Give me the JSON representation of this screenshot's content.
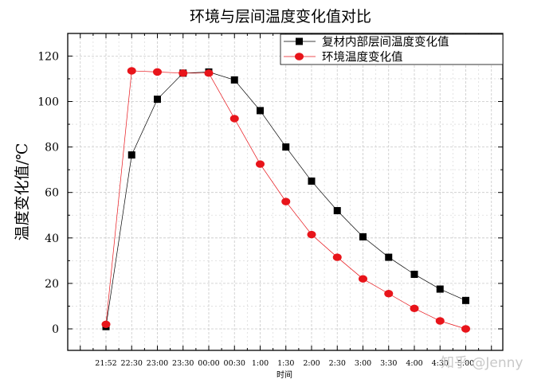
{
  "watermark": "知乎 @Jenny",
  "chart_data": {
    "type": "line",
    "title": "环境与层间温度变化值对比",
    "xlabel": "时间",
    "ylabel": "温度变化值/℃",
    "categories": [
      "21:52",
      "22:30",
      "23:00",
      "23:30",
      "00:00",
      "00:30",
      "1:00",
      "1:30",
      "2:00",
      "2:30",
      "3:00",
      "3:30",
      "4:00",
      "4:30",
      "5:00"
    ],
    "x_tick_labels": [
      "21:52",
      "22:30",
      "23:00",
      "23:30",
      "00:00",
      "00:30",
      "1:00",
      "1:30",
      "2:00",
      "2:30",
      "3:00",
      "3:30",
      "4:00",
      "4:30",
      "5:00"
    ],
    "ylim": [
      -10,
      130
    ],
    "yticks": [
      0,
      20,
      40,
      60,
      80,
      100,
      120
    ],
    "grid": true,
    "legend_position": "top-right",
    "series": [
      {
        "name": "复材内部层间温度变化值",
        "color": "#000000",
        "marker": "square",
        "values": [
          1,
          76.5,
          101,
          112.5,
          113,
          109.5,
          96,
          80,
          65,
          52,
          40.5,
          31.5,
          24,
          17.5,
          12.5
        ]
      },
      {
        "name": "环境温度变化值",
        "color": "#e8141a",
        "marker": "circle",
        "values": [
          2,
          113.5,
          113,
          112.5,
          112.5,
          92.5,
          72.5,
          56,
          41.5,
          31.5,
          22,
          15.5,
          9,
          3.5,
          0
        ]
      }
    ]
  }
}
